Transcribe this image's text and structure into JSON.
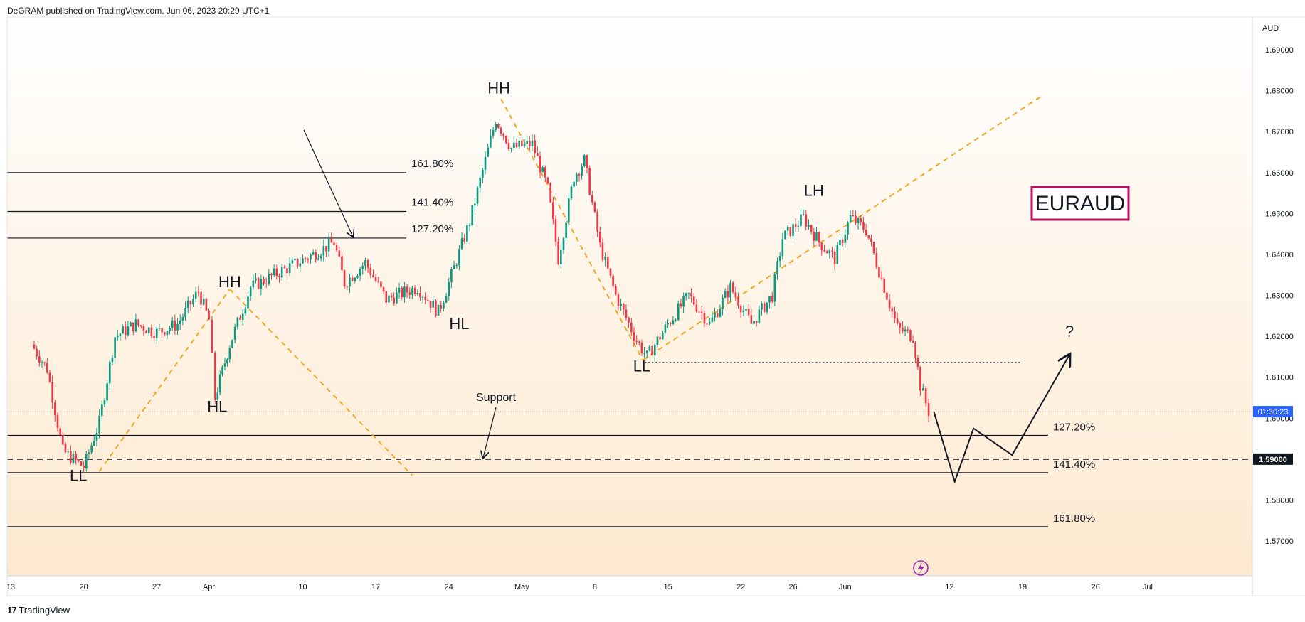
{
  "header": {
    "published": "DeGRAM published on TradingView.com, Jun 06, 2023 20:29 UTC+1"
  },
  "footer": {
    "logo_mark": "17",
    "logo_text": "TradingView"
  },
  "colors": {
    "bull": "#089981",
    "bear": "#f23645",
    "trend": "#f5a623",
    "bg_top": "#ffffff",
    "bg_bottom": "#fde9cf",
    "symbol_box": "#b5125f",
    "price_badge": "#2962ff"
  },
  "chart_data": {
    "type": "candlestick",
    "symbol": "EURAUD",
    "currency": "AUD",
    "price_badge": "01:30:23",
    "level_badge": "1.59000",
    "ylim": [
      1.5615,
      1.698
    ],
    "yticks": [
      "1.69000",
      "1.68000",
      "1.67000",
      "1.66000",
      "1.65000",
      "1.64000",
      "1.63000",
      "1.62000",
      "1.61000",
      "1.60000",
      "1.59000",
      "1.58000",
      "1.57000"
    ],
    "xticks": [
      {
        "label": "13",
        "day": 0
      },
      {
        "label": "20",
        "day": 7
      },
      {
        "label": "27",
        "day": 14
      },
      {
        "label": "Apr",
        "day": 19
      },
      {
        "label": "10",
        "day": 28
      },
      {
        "label": "17",
        "day": 35
      },
      {
        "label": "24",
        "day": 42
      },
      {
        "label": "May",
        "day": 49
      },
      {
        "label": "8",
        "day": 56
      },
      {
        "label": "15",
        "day": 63
      },
      {
        "label": "22",
        "day": 70
      },
      {
        "label": "26",
        "day": 75
      },
      {
        "label": "Jun",
        "day": 80
      },
      {
        "label": "12",
        "day": 90
      },
      {
        "label": "19",
        "day": 97
      },
      {
        "label": "26",
        "day": 104
      },
      {
        "label": "Jul",
        "day": 109
      }
    ],
    "last_price": 1.6016,
    "swing_path": [
      {
        "day": 2.0,
        "price": 1.618
      },
      {
        "day": 3.5,
        "price": 1.612
      },
      {
        "day": 5.0,
        "price": 1.592
      },
      {
        "day": 7.0,
        "price": 1.588
      },
      {
        "day": 8.5,
        "price": 1.599
      },
      {
        "day": 10.0,
        "price": 1.62
      },
      {
        "day": 12.0,
        "price": 1.623
      },
      {
        "day": 14.0,
        "price": 1.621
      },
      {
        "day": 16.0,
        "price": 1.623
      },
      {
        "day": 18.0,
        "price": 1.631
      },
      {
        "day": 19.0,
        "price": 1.624
      },
      {
        "day": 19.6,
        "price": 1.605
      },
      {
        "day": 21.0,
        "price": 1.618
      },
      {
        "day": 23.0,
        "price": 1.632
      },
      {
        "day": 26.0,
        "price": 1.636
      },
      {
        "day": 29.0,
        "price": 1.64
      },
      {
        "day": 31.0,
        "price": 1.643
      },
      {
        "day": 32.0,
        "price": 1.633
      },
      {
        "day": 34.0,
        "price": 1.638
      },
      {
        "day": 36.0,
        "price": 1.629
      },
      {
        "day": 39.0,
        "price": 1.632
      },
      {
        "day": 41.0,
        "price": 1.626
      },
      {
        "day": 42.0,
        "price": 1.633
      },
      {
        "day": 44.0,
        "price": 1.648
      },
      {
        "day": 45.0,
        "price": 1.658
      },
      {
        "day": 46.5,
        "price": 1.673
      },
      {
        "day": 48.0,
        "price": 1.666
      },
      {
        "day": 50.0,
        "price": 1.667
      },
      {
        "day": 51.5,
        "price": 1.656
      },
      {
        "day": 52.5,
        "price": 1.639
      },
      {
        "day": 54.0,
        "price": 1.659
      },
      {
        "day": 55.0,
        "price": 1.663
      },
      {
        "day": 56.5,
        "price": 1.642
      },
      {
        "day": 58.0,
        "price": 1.63
      },
      {
        "day": 60.0,
        "price": 1.619
      },
      {
        "day": 61.0,
        "price": 1.615
      },
      {
        "day": 63.0,
        "price": 1.623
      },
      {
        "day": 65.0,
        "price": 1.63
      },
      {
        "day": 67.0,
        "price": 1.623
      },
      {
        "day": 69.0,
        "price": 1.632
      },
      {
        "day": 71.0,
        "price": 1.623
      },
      {
        "day": 73.0,
        "price": 1.63
      },
      {
        "day": 74.0,
        "price": 1.644
      },
      {
        "day": 76.0,
        "price": 1.649
      },
      {
        "day": 77.5,
        "price": 1.643
      },
      {
        "day": 79.0,
        "price": 1.639
      },
      {
        "day": 80.5,
        "price": 1.649
      },
      {
        "day": 82.0,
        "price": 1.646
      },
      {
        "day": 83.0,
        "price": 1.638
      },
      {
        "day": 84.0,
        "price": 1.63
      },
      {
        "day": 85.0,
        "price": 1.622
      },
      {
        "day": 86.5,
        "price": 1.62
      },
      {
        "day": 87.2,
        "price": 1.608
      },
      {
        "day": 88.0,
        "price": 1.6016
      }
    ],
    "fib_levels_upper": [
      {
        "label": "161.80%",
        "price": 1.66
      },
      {
        "label": "141.40%",
        "price": 1.6505
      },
      {
        "label": "127.20%",
        "price": 1.644
      }
    ],
    "fib_levels_lower": [
      {
        "label": "127.20%",
        "price": 1.5958
      },
      {
        "label": "141.40%",
        "price": 1.5867
      },
      {
        "label": "161.80%",
        "price": 1.5735
      }
    ],
    "support_level": {
      "label": "Support",
      "price": 1.59
    },
    "ll_marker_price": 1.6136,
    "swing_labels": [
      {
        "text": "HH",
        "day": 46.8,
        "price": 1.6793
      },
      {
        "text": "HH",
        "day": 21.0,
        "price": 1.632
      },
      {
        "text": "HL",
        "day": 19.8,
        "price": 1.6015
      },
      {
        "text": "HL",
        "day": 43.0,
        "price": 1.6218
      },
      {
        "text": "LL",
        "day": 6.5,
        "price": 1.5847
      },
      {
        "text": "LL",
        "day": 60.5,
        "price": 1.6114
      },
      {
        "text": "LH",
        "day": 77.0,
        "price": 1.6543
      }
    ],
    "trend_lines": [
      {
        "from": {
          "day": 8.5,
          "price": 1.587
        },
        "to": {
          "day": 21.0,
          "price": 1.6315
        }
      },
      {
        "from": {
          "day": 21.0,
          "price": 1.6315
        },
        "to": {
          "day": 38.5,
          "price": 1.586
        }
      },
      {
        "from": {
          "day": 47.0,
          "price": 1.678
        },
        "to": {
          "day": 60.6,
          "price": 1.6142
        }
      },
      {
        "from": {
          "day": 60.6,
          "price": 1.6142
        },
        "to": {
          "day": 99.0,
          "price": 1.679
        }
      }
    ],
    "projection": [
      {
        "day": 88.5,
        "price": 1.6016
      },
      {
        "day": 90.5,
        "price": 1.5845
      },
      {
        "day": 92.3,
        "price": 1.5975
      },
      {
        "day": 96.0,
        "price": 1.591
      },
      {
        "day": 101.5,
        "price": 1.6155
      }
    ],
    "question_mark": {
      "text": "?",
      "day": 101.5,
      "price": 1.6182
    }
  }
}
